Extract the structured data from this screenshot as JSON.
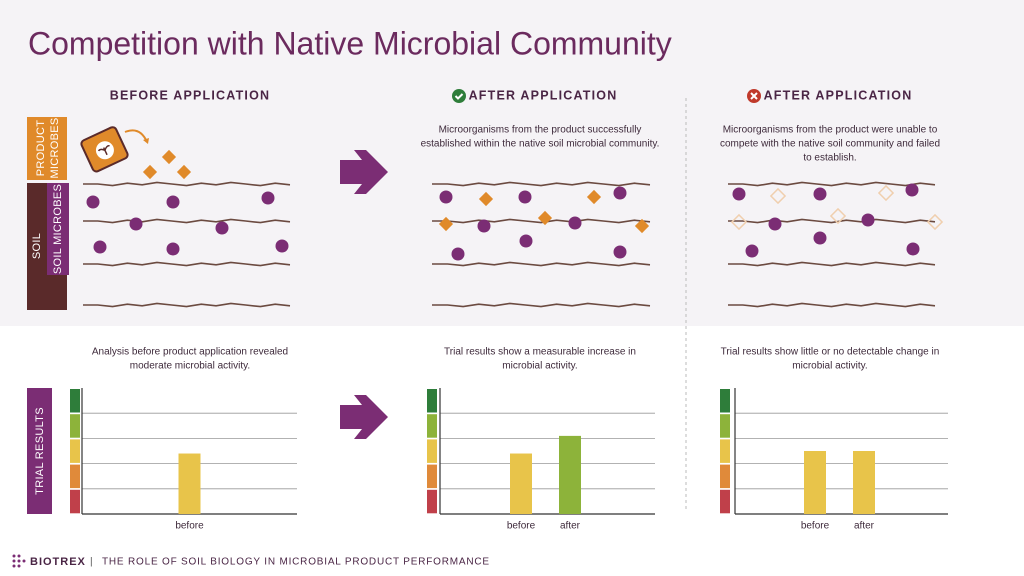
{
  "header": {
    "title": "Competition with Native Microbial Community"
  },
  "labels": {
    "product_microbes": [
      "PRODUCT",
      "MICROBES"
    ],
    "soil_microbes": "SOIL MICROBES",
    "soil": "SOIL",
    "trial_results": "TRIAL RESULTS"
  },
  "panels": [
    {
      "heading": "BEFORE APPLICATION",
      "result_text": [
        "Analysis before product application revealed",
        "moderate microbial activity."
      ],
      "chart": {
        "type": "bar",
        "categories": [
          "before"
        ],
        "values": [
          2.4
        ],
        "colors": [
          "#e8c44a"
        ],
        "ylim": [
          0,
          5
        ],
        "yticks": [
          1,
          2,
          3,
          4
        ]
      }
    },
    {
      "heading": "AFTER APPLICATION",
      "description": [
        "Microorganisms from the product successfully",
        "established within the native soil microbial community."
      ],
      "result_text": [
        "Trial results show a measurable increase in",
        "microbial activity."
      ],
      "chart": {
        "type": "bar",
        "categories": [
          "before",
          "after"
        ],
        "values": [
          2.4,
          3.1
        ],
        "colors": [
          "#e8c44a",
          "#8db33a"
        ],
        "ylim": [
          0,
          5
        ],
        "yticks": [
          1,
          2,
          3,
          4
        ]
      }
    },
    {
      "heading": "AFTER APPLICATION",
      "description": [
        "Microorganisms from the product were unable to",
        "compete with the native soil community and failed",
        "to establish."
      ],
      "result_text": [
        "Trial results show little or no detectable change in",
        "microbial activity."
      ],
      "chart": {
        "type": "bar",
        "categories": [
          "before",
          "after"
        ],
        "values": [
          2.5,
          2.5
        ],
        "colors": [
          "#e8c44a",
          "#e8c44a"
        ],
        "ylim": [
          0,
          5
        ],
        "yticks": [
          1,
          2,
          3,
          4
        ]
      }
    }
  ],
  "footer": {
    "brand": "BIOTREX",
    "text": "THE ROLE OF SOIL BIOLOGY IN MICROBIAL PRODUCT PERFORMANCE"
  }
}
